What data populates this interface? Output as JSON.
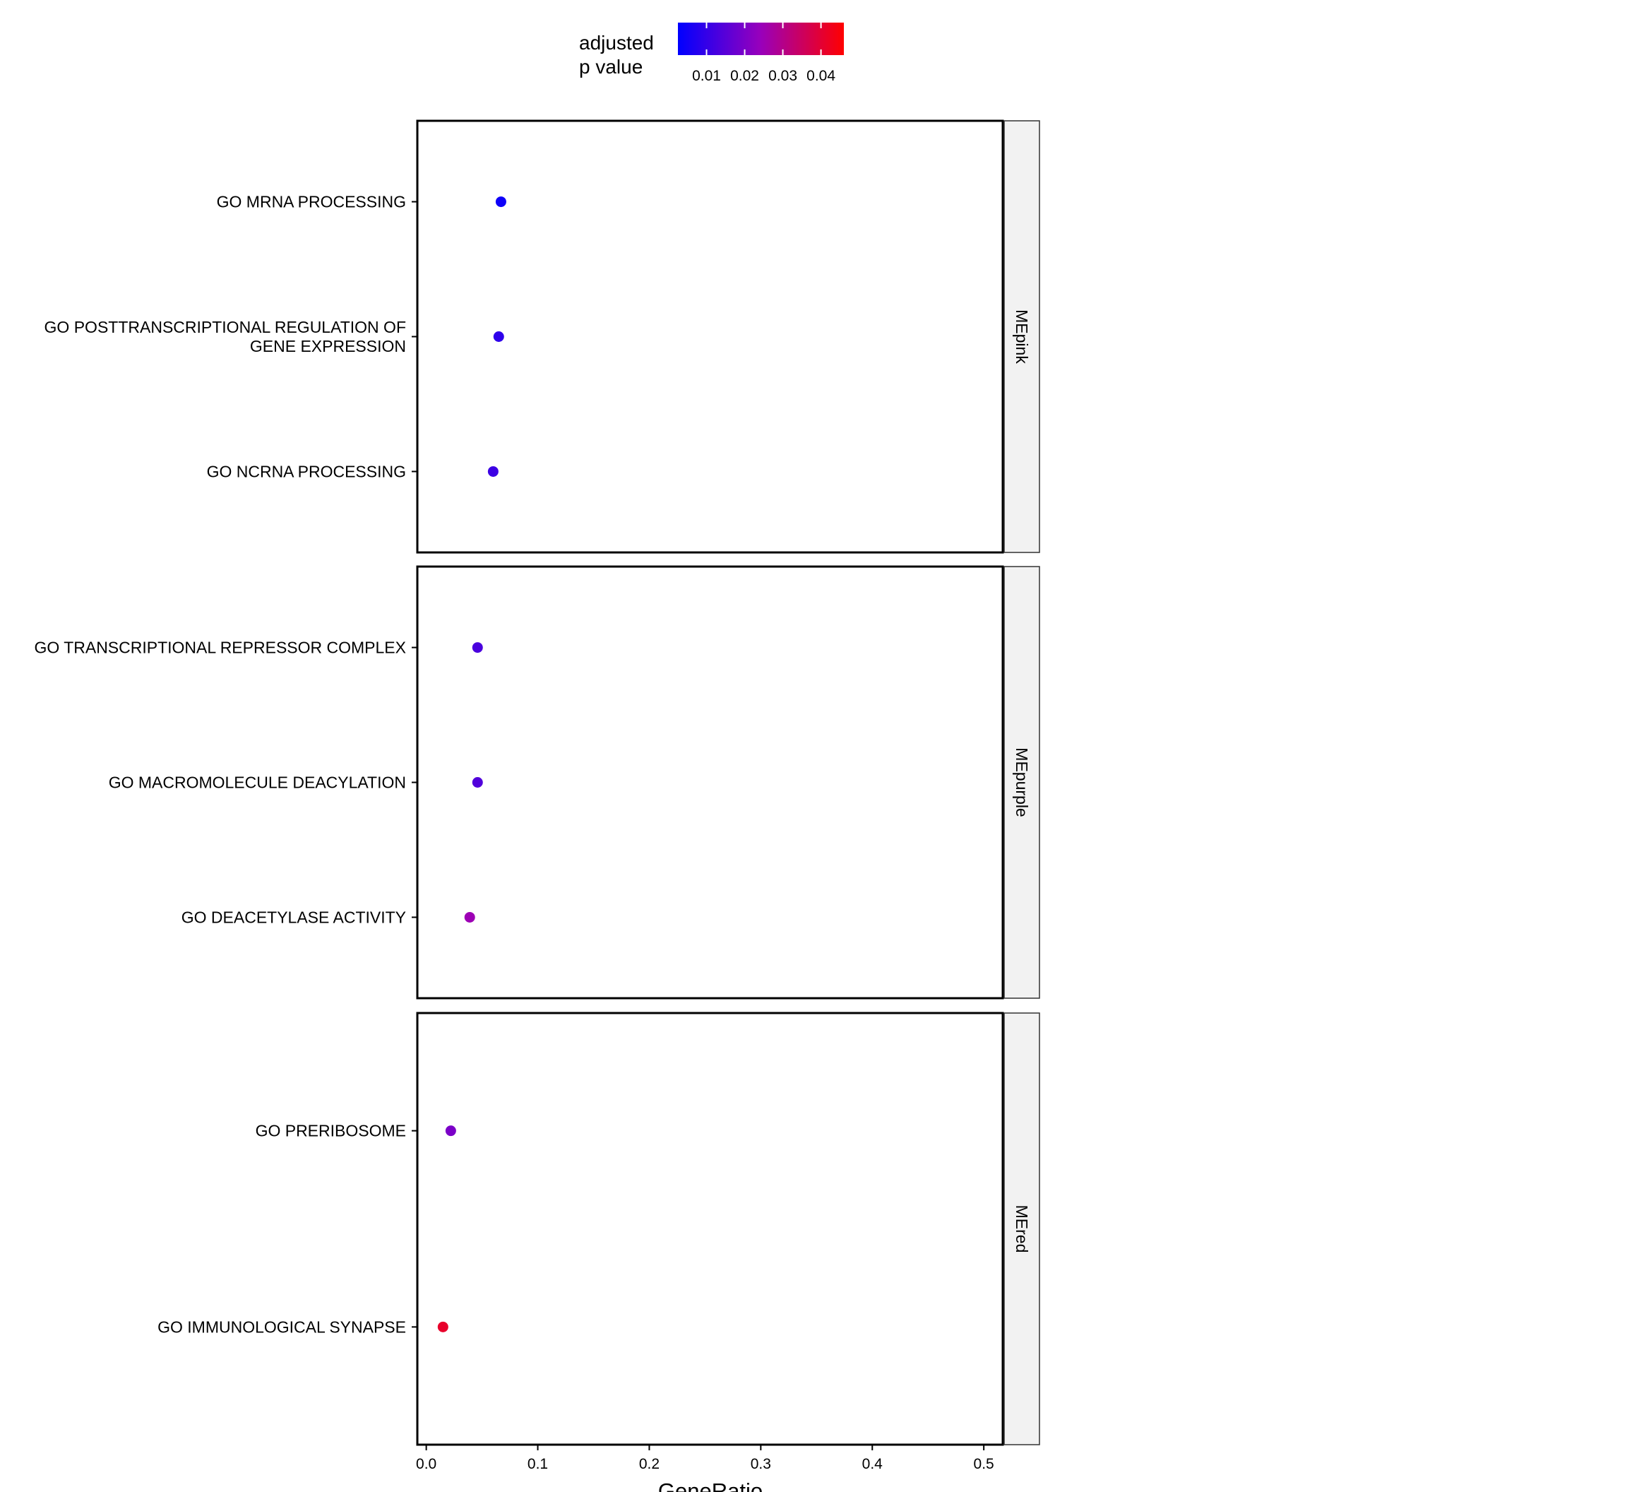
{
  "chart_data": {
    "type": "scatter",
    "xlabel": "GeneRatio",
    "ylabel": "",
    "xlim": [
      -0.008,
      0.517
    ],
    "xticks": [
      0.0,
      0.1,
      0.2,
      0.3,
      0.4,
      0.5
    ],
    "xtick_labels": [
      "0.0",
      "0.1",
      "0.2",
      "0.3",
      "0.4",
      "0.5"
    ],
    "legend": {
      "title_lines": [
        "adjusted",
        "p value"
      ],
      "position": "top",
      "range": [
        0.0025,
        0.046
      ],
      "ticks": [
        0.01,
        0.02,
        0.03,
        0.04
      ],
      "tick_labels": [
        "0.01",
        "0.02",
        "0.03",
        "0.04"
      ],
      "low_color": "#0000ff",
      "high_color": "#ff0000"
    },
    "facets": [
      {
        "label": "MEpink",
        "terms": [
          {
            "label_lines": [
              "GO MRNA PROCESSING"
            ],
            "x": 0.067,
            "p_adjust": 0.0045
          },
          {
            "label_lines": [
              "GO POSTTRANSCRIPTIONAL REGULATION OF",
              "GENE EXPRESSION"
            ],
            "x": 0.065,
            "p_adjust": 0.009
          },
          {
            "label_lines": [
              "GO NCRNA PROCESSING"
            ],
            "x": 0.06,
            "p_adjust": 0.011
          }
        ]
      },
      {
        "label": "MEpurple",
        "terms": [
          {
            "label_lines": [
              "GO TRANSCRIPTIONAL REPRESSOR COMPLEX"
            ],
            "x": 0.046,
            "p_adjust": 0.013
          },
          {
            "label_lines": [
              "GO MACROMOLECULE DEACYLATION"
            ],
            "x": 0.046,
            "p_adjust": 0.014
          },
          {
            "label_lines": [
              "GO DEACETYLASE ACTIVITY"
            ],
            "x": 0.039,
            "p_adjust": 0.025
          }
        ]
      },
      {
        "label": "MEred",
        "terms": [
          {
            "label_lines": [
              "GO PRERIBOSOME"
            ],
            "x": 0.022,
            "p_adjust": 0.02
          },
          {
            "label_lines": [
              "GO IMMUNOLOGICAL SYNAPSE"
            ],
            "x": 0.015,
            "p_adjust": 0.041
          }
        ]
      }
    ]
  }
}
